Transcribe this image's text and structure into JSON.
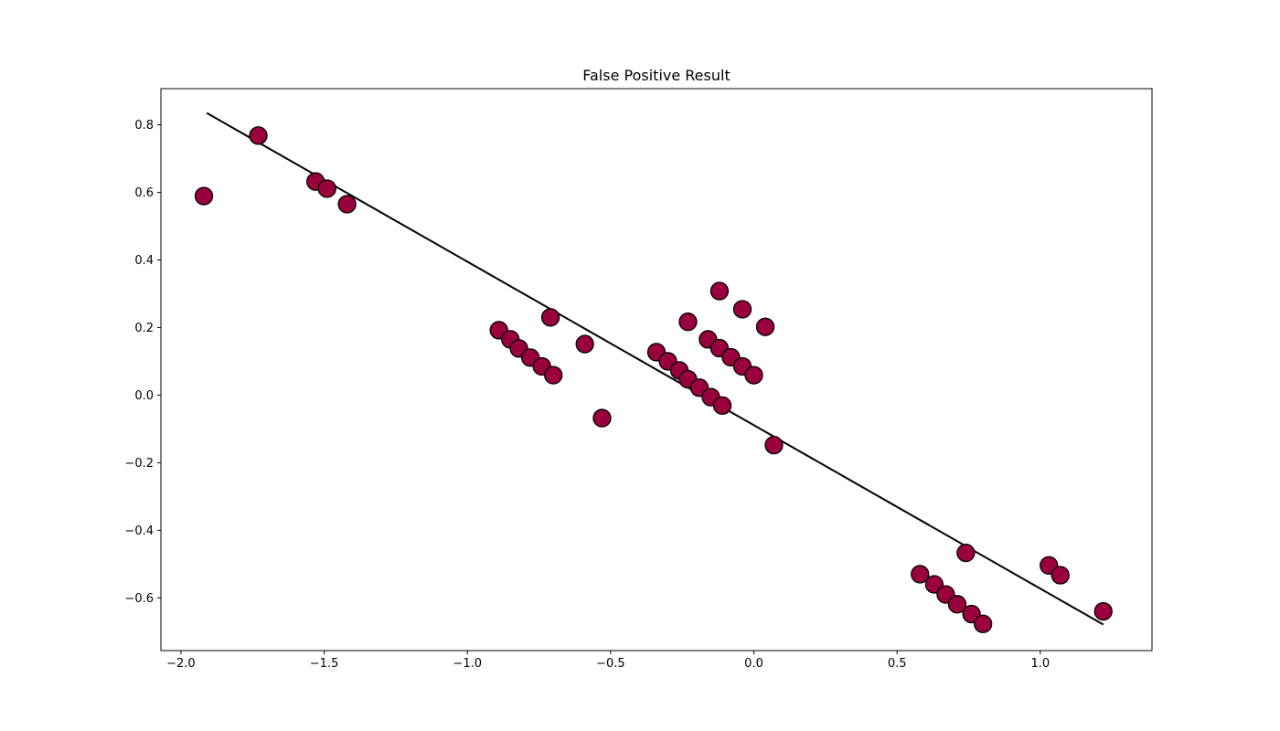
{
  "chart_data": {
    "type": "scatter",
    "title": "False Positive Result",
    "xlabel": "",
    "ylabel": "",
    "xlim": [
      -2.07,
      1.39
    ],
    "ylim": [
      -0.756,
      0.907
    ],
    "x_ticks": [
      {
        "value": -2.0,
        "label": "−2.0"
      },
      {
        "value": -1.5,
        "label": "−1.5"
      },
      {
        "value": -1.0,
        "label": "−1.0"
      },
      {
        "value": -0.5,
        "label": "−0.5"
      },
      {
        "value": 0.0,
        "label": "0.0"
      },
      {
        "value": 0.5,
        "label": "0.5"
      },
      {
        "value": 1.0,
        "label": "1.0"
      }
    ],
    "y_ticks": [
      {
        "value": -0.6,
        "label": "−0.6"
      },
      {
        "value": -0.4,
        "label": "−0.4"
      },
      {
        "value": -0.2,
        "label": "−0.2"
      },
      {
        "value": 0.0,
        "label": "0.0"
      },
      {
        "value": 0.2,
        "label": "0.2"
      },
      {
        "value": 0.4,
        "label": "0.4"
      },
      {
        "value": 0.6,
        "label": "0.6"
      },
      {
        "value": 0.8,
        "label": "0.8"
      }
    ],
    "grid": false,
    "marker_color": "#99003d",
    "marker_edge_color": "#000000",
    "line_color": "#000000",
    "fit_line": {
      "x": [
        -1.91,
        1.22
      ],
      "y": [
        0.835,
        -0.679
      ]
    },
    "points": [
      {
        "x": -1.92,
        "y": 0.589
      },
      {
        "x": -1.73,
        "y": 0.768
      },
      {
        "x": -1.53,
        "y": 0.632
      },
      {
        "x": -1.49,
        "y": 0.611
      },
      {
        "x": -1.42,
        "y": 0.565
      },
      {
        "x": -0.89,
        "y": 0.192
      },
      {
        "x": -0.85,
        "y": 0.165
      },
      {
        "x": -0.82,
        "y": 0.138
      },
      {
        "x": -0.78,
        "y": 0.111
      },
      {
        "x": -0.74,
        "y": 0.085
      },
      {
        "x": -0.7,
        "y": 0.059
      },
      {
        "x": -0.71,
        "y": 0.23
      },
      {
        "x": -0.59,
        "y": 0.151
      },
      {
        "x": -0.53,
        "y": -0.068
      },
      {
        "x": -0.34,
        "y": 0.127
      },
      {
        "x": -0.3,
        "y": 0.1
      },
      {
        "x": -0.26,
        "y": 0.073
      },
      {
        "x": -0.23,
        "y": 0.047
      },
      {
        "x": -0.19,
        "y": 0.022
      },
      {
        "x": -0.15,
        "y": -0.006
      },
      {
        "x": -0.11,
        "y": -0.031
      },
      {
        "x": -0.23,
        "y": 0.217
      },
      {
        "x": -0.12,
        "y": 0.308
      },
      {
        "x": -0.04,
        "y": 0.254
      },
      {
        "x": 0.04,
        "y": 0.202
      },
      {
        "x": -0.16,
        "y": 0.165
      },
      {
        "x": -0.12,
        "y": 0.139
      },
      {
        "x": -0.08,
        "y": 0.112
      },
      {
        "x": -0.04,
        "y": 0.085
      },
      {
        "x": 0.0,
        "y": 0.059
      },
      {
        "x": 0.07,
        "y": -0.148
      },
      {
        "x": 0.58,
        "y": -0.53
      },
      {
        "x": 0.63,
        "y": -0.56
      },
      {
        "x": 0.67,
        "y": -0.59
      },
      {
        "x": 0.71,
        "y": -0.619
      },
      {
        "x": 0.76,
        "y": -0.648
      },
      {
        "x": 0.8,
        "y": -0.677
      },
      {
        "x": 0.74,
        "y": -0.467
      },
      {
        "x": 1.03,
        "y": -0.504
      },
      {
        "x": 1.07,
        "y": -0.533
      },
      {
        "x": 1.22,
        "y": -0.64
      }
    ]
  }
}
